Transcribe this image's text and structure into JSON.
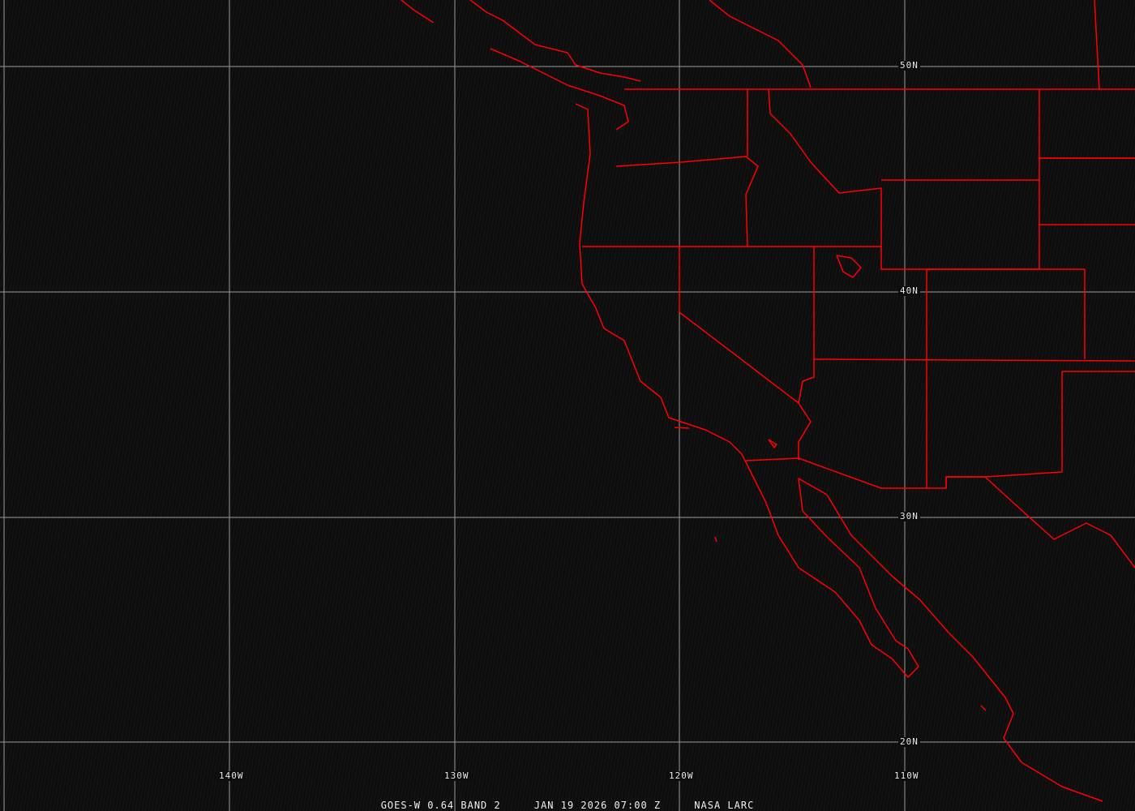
{
  "image": {
    "caption": {
      "satellite": "GOES-W 0.64 BAND 2",
      "datetime": "JAN 19 2026 07:00 Z",
      "source": "NASA LARC"
    },
    "latitude_labels": [
      "50N",
      "40N",
      "30N",
      "20N"
    ],
    "longitude_labels": [
      "140W",
      "130W",
      "120W",
      "110W"
    ],
    "colors": {
      "borders": "#ff0000",
      "grid": "#a0a0a0",
      "background": "#0d0d0d"
    }
  }
}
